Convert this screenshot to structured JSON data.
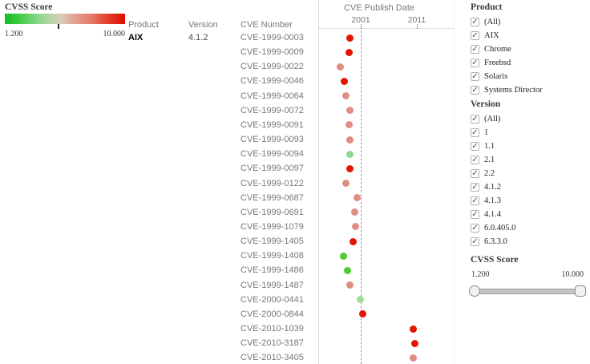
{
  "legend": {
    "title": "CVSS Score",
    "min_label": "1.200",
    "max_label": "10.000"
  },
  "columns": {
    "product": "Product",
    "version": "Version",
    "cve": "CVE Number"
  },
  "chart_data": {
    "type": "scatter",
    "title": "CVE Publish Date",
    "xlabel": "CVE Publish Date",
    "x_ticks": [
      2001,
      2011
    ],
    "x_tick_labels": [
      "2001",
      "2011"
    ],
    "reference_line_year": 2001,
    "product": "AIX",
    "version": "4.1.2",
    "color_encoding": "CVSS Score: green=low (1.200) to red=high (10.000)",
    "points": [
      {
        "cve": "CVE-1999-0003",
        "year": 1999.1,
        "color": "#e51400"
      },
      {
        "cve": "CVE-1999-0009",
        "year": 1998.9,
        "color": "#e51400"
      },
      {
        "cve": "CVE-1999-0022",
        "year": 1997.4,
        "color": "#e08e84"
      },
      {
        "cve": "CVE-1999-0046",
        "year": 1998.0,
        "color": "#e51400"
      },
      {
        "cve": "CVE-1999-0064",
        "year": 1998.4,
        "color": "#e08e84"
      },
      {
        "cve": "CVE-1999-0072",
        "year": 1999.0,
        "color": "#e08e84"
      },
      {
        "cve": "CVE-1999-0091",
        "year": 1998.9,
        "color": "#e08e84"
      },
      {
        "cve": "CVE-1999-0093",
        "year": 1999.0,
        "color": "#e08e84"
      },
      {
        "cve": "CVE-1999-0094",
        "year": 1999.0,
        "color": "#8fd98f"
      },
      {
        "cve": "CVE-1999-0097",
        "year": 1999.1,
        "color": "#e51400"
      },
      {
        "cve": "CVE-1999-0122",
        "year": 1998.3,
        "color": "#e08e84"
      },
      {
        "cve": "CVE-1999-0687",
        "year": 2000.3,
        "color": "#e08e84"
      },
      {
        "cve": "CVE-1999-0691",
        "year": 1999.9,
        "color": "#e08e84"
      },
      {
        "cve": "CVE-1999-1079",
        "year": 2000.0,
        "color": "#e08e84"
      },
      {
        "cve": "CVE-1999-1405",
        "year": 1999.7,
        "color": "#e51400"
      },
      {
        "cve": "CVE-1999-1408",
        "year": 1997.9,
        "color": "#4ccc30"
      },
      {
        "cve": "CVE-1999-1486",
        "year": 1998.6,
        "color": "#4ccc30"
      },
      {
        "cve": "CVE-1999-1487",
        "year": 1999.0,
        "color": "#e08e84"
      },
      {
        "cve": "CVE-2000-0441",
        "year": 2000.9,
        "color": "#9adf9a"
      },
      {
        "cve": "CVE-2000-0844",
        "year": 2001.3,
        "color": "#e51400"
      },
      {
        "cve": "CVE-2010-1039",
        "year": 2010.4,
        "color": "#e51400"
      },
      {
        "cve": "CVE-2010-3187",
        "year": 2010.7,
        "color": "#e51400"
      },
      {
        "cve": "CVE-2010-3405",
        "year": 2010.4,
        "color": "#e08e84"
      }
    ]
  },
  "filters": {
    "product": {
      "title": "Product",
      "all_checked": true,
      "options": [
        "(All)",
        "AIX",
        "Chrome",
        "Freebsd",
        "Solaris",
        "Systems Director"
      ]
    },
    "version": {
      "title": "Version",
      "all_checked": true,
      "options": [
        "(All)",
        "1",
        "1.1",
        "2.1",
        "2.2",
        "4.1.2",
        "4.1.3",
        "4.1.4",
        "6.0.405.0",
        "6.3.3.0"
      ]
    },
    "cvss": {
      "title": "CVSS Score",
      "min_label": "1.200",
      "max_label": "10.000"
    }
  }
}
